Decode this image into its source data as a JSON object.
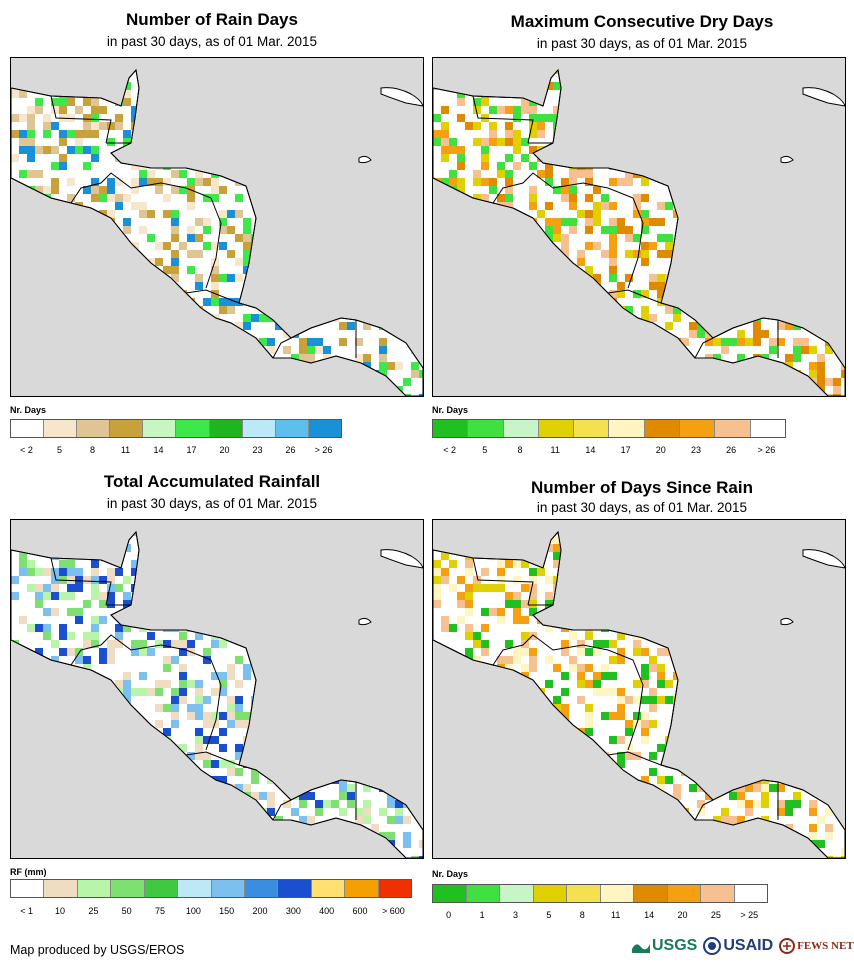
{
  "panels": [
    {
      "title": "Number of Rain Days",
      "subtitle": "in past 30 days, as of 01 Mar. 2015",
      "legend_title": "Nr. Days",
      "legend_colors": [
        "#ffffff",
        "#f5e6cc",
        "#e0c594",
        "#c9a13a",
        "#c8f5c0",
        "#3ee84a",
        "#1fb51f",
        "#bce9f7",
        "#5cc0ef",
        "#1a90d6"
      ],
      "legend_labels": [
        "< 2",
        "5",
        "8",
        "11",
        "14",
        "17",
        "20",
        "23",
        "26",
        "> 26"
      ],
      "land_color": "#ffffff",
      "blob_colors": [
        "#f5e6cc",
        "#e0c594",
        "#c9a13a",
        "#3ee84a",
        "#1a90d6"
      ]
    },
    {
      "title": "Maximum Consecutive Dry Days",
      "subtitle": "in past 30 days, as of 01 Mar. 2015",
      "legend_title": "Nr. Days",
      "legend_colors": [
        "#20c020",
        "#40e040",
        "#c8f5c8",
        "#e0d000",
        "#f5e050",
        "#fff5c0",
        "#e08a00",
        "#f5a010",
        "#f7c090",
        "#ffffff"
      ],
      "legend_labels": [
        "< 2",
        "5",
        "8",
        "11",
        "14",
        "17",
        "20",
        "23",
        "26",
        "> 26"
      ],
      "land_color": "#ffffff",
      "blob_colors": [
        "#f7c090",
        "#e08a00",
        "#f5a010",
        "#e0d000",
        "#40e040"
      ]
    },
    {
      "title": "Total Accumulated Rainfall",
      "subtitle": "in past 30 days, as of 01 Mar. 2015",
      "legend_title": "RF (mm)",
      "legend_colors": [
        "#ffffff",
        "#f0dcc0",
        "#b8f5a8",
        "#7ee070",
        "#40c840",
        "#bde8f5",
        "#7cc0ef",
        "#3a8ee0",
        "#1a50d0",
        "#ffe070",
        "#f5a000",
        "#f03000"
      ],
      "legend_labels": [
        "< 1",
        "10",
        "25",
        "50",
        "75",
        "100",
        "150",
        "200",
        "300",
        "400",
        "600",
        "> 600"
      ],
      "land_color": "#ffffff",
      "blob_colors": [
        "#f0dcc0",
        "#b8f5a8",
        "#7ee070",
        "#7cc0ef",
        "#1a50d0"
      ]
    },
    {
      "title": "Number of Days Since Rain",
      "subtitle": "in past 30 days, as of 01 Mar. 2015",
      "legend_title": "Nr. Days",
      "legend_colors": [
        "#20c020",
        "#40e040",
        "#c8f5c8",
        "#e0d000",
        "#f5e050",
        "#fff5c0",
        "#e08a00",
        "#f5a010",
        "#f7c090",
        "#ffffff"
      ],
      "legend_labels": [
        "0",
        "1",
        "3",
        "5",
        "8",
        "11",
        "14",
        "20",
        "25",
        "> 25"
      ],
      "land_color": "#ffffff",
      "blob_colors": [
        "#f7c090",
        "#fff5c0",
        "#e0d000",
        "#20c020",
        "#f5a010"
      ]
    }
  ],
  "footer": "Map produced by USGS/EROS",
  "logos": {
    "usgs": "USGS",
    "usaid": "USAID",
    "fews": "FEWS NET"
  }
}
